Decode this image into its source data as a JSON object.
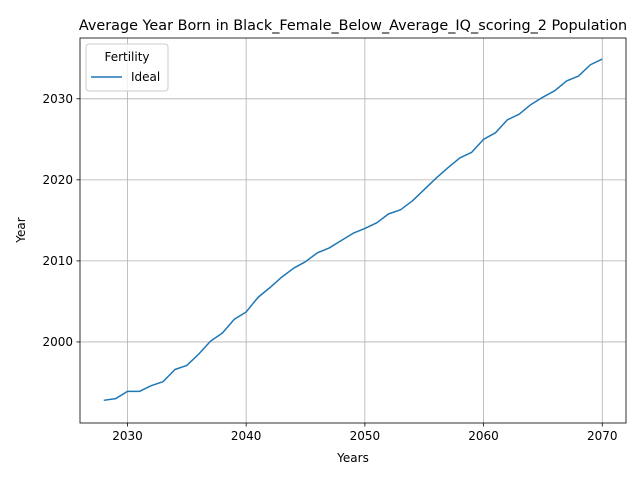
{
  "chart_data": {
    "type": "line",
    "title": "Average Year Born in Black_Female_Below_Average_IQ_scoring_2 Population",
    "xlabel": "Years",
    "ylabel": "Year",
    "xlim": [
      2026,
      2072
    ],
    "ylim": [
      1990.0,
      2037.5
    ],
    "xticks": [
      2030,
      2040,
      2050,
      2060,
      2070
    ],
    "yticks": [
      2000,
      2010,
      2020,
      2030
    ],
    "xtick_labels": [
      "2030",
      "2040",
      "2050",
      "2060",
      "2070"
    ],
    "ytick_labels": [
      "2000",
      "2010",
      "2020",
      "2030"
    ],
    "grid": true,
    "legend": {
      "title": "Fertility",
      "placement": "top-left"
    },
    "series": [
      {
        "name": "Ideal",
        "color": "#1f77b4",
        "x": [
          2028,
          2029,
          2030,
          2031,
          2032,
          2033,
          2034,
          2035,
          2036,
          2037,
          2038,
          2039,
          2040,
          2041,
          2042,
          2043,
          2044,
          2045,
          2046,
          2047,
          2048,
          2049,
          2050,
          2051,
          2052,
          2053,
          2054,
          2055,
          2056,
          2057,
          2058,
          2059,
          2060,
          2061,
          2062,
          2063,
          2064,
          2065,
          2066,
          2067,
          2068,
          2069,
          2070
        ],
        "values": [
          1992.8,
          1993.0,
          1993.9,
          1993.9,
          1994.6,
          1995.1,
          1996.6,
          1997.1,
          1998.5,
          2000.1,
          2001.1,
          2002.8,
          2003.7,
          2005.5,
          2006.7,
          2008.0,
          2009.1,
          2009.9,
          2011.0,
          2011.6,
          2012.5,
          2013.4,
          2014.0,
          2014.7,
          2015.8,
          2016.3,
          2017.4,
          2018.8,
          2020.2,
          2021.5,
          2022.7,
          2023.4,
          2025.0,
          2025.8,
          2027.4,
          2028.1,
          2029.3,
          2030.2,
          2031.0,
          2032.2,
          2032.8,
          2034.2,
          2034.9
        ]
      }
    ]
  }
}
